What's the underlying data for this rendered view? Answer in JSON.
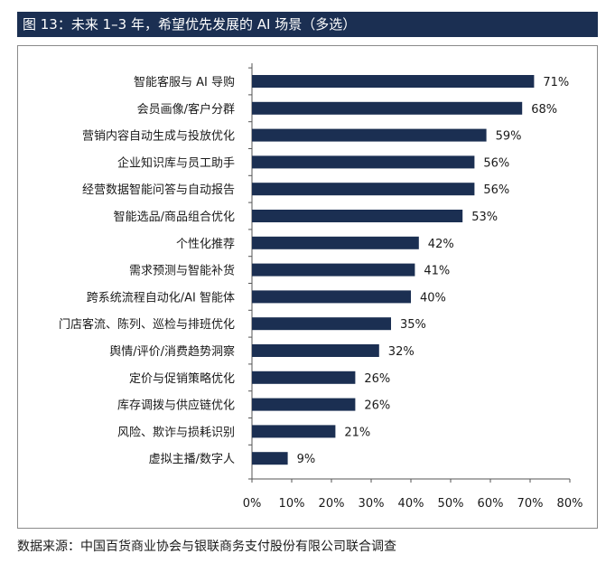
{
  "header": {
    "title": "图 13：未来 1–3 年，希望优先发展的 AI 场景（多选）"
  },
  "footer": {
    "source": "数据来源：中国百货商业协会与银联商务支付股份有限公司联合调查"
  },
  "colors": {
    "bar": "#1b2f52",
    "title_bg": "#1b2f52"
  },
  "chart_data": {
    "type": "bar",
    "orientation": "horizontal",
    "title": "",
    "xlabel": "",
    "ylabel": "",
    "xlim": [
      0,
      80
    ],
    "x_ticks": [
      "0%",
      "10%",
      "20%",
      "30%",
      "40%",
      "50%",
      "60%",
      "70%",
      "80%"
    ],
    "grid": false,
    "categories": [
      "智能客服与 AI 导购",
      "会员画像/客户分群",
      "营销内容自动生成与投放优化",
      "企业知识库与员工助手",
      "经营数据智能问答与自动报告",
      "智能选品/商品组合优化",
      "个性化推荐",
      "需求预测与智能补货",
      "跨系统流程自动化/AI 智能体",
      "门店客流、陈列、巡检与排班优化",
      "舆情/评价/消费趋势洞察",
      "定价与促销策略优化",
      "库存调拨与供应链优化",
      "风险、欺诈与损耗识别",
      "虚拟主播/数字人"
    ],
    "values": [
      71,
      68,
      59,
      56,
      56,
      53,
      42,
      41,
      40,
      35,
      32,
      26,
      26,
      21,
      9
    ],
    "value_labels": [
      "71%",
      "68%",
      "59%",
      "56%",
      "56%",
      "53%",
      "42%",
      "41%",
      "40%",
      "35%",
      "32%",
      "26%",
      "26%",
      "21%",
      "9%"
    ]
  }
}
